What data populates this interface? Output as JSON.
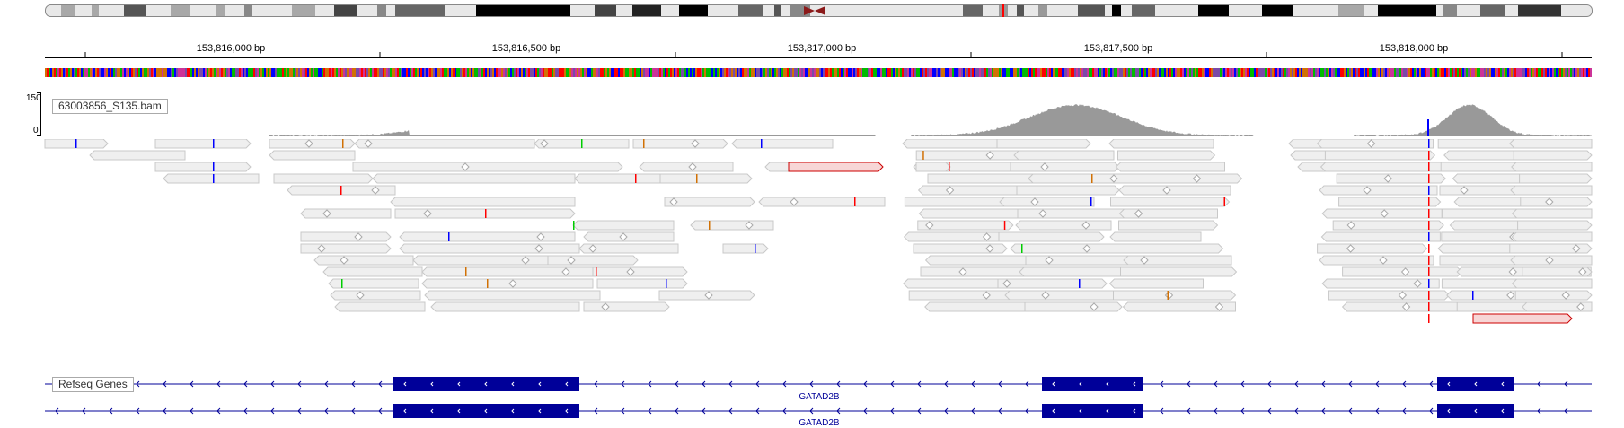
{
  "ruler": {
    "ticks": [
      "153,816,000 bp",
      "153,816,500 bp",
      "153,817,000 bp",
      "153,817,500 bp",
      "153,818,000 bp"
    ]
  },
  "coverage_track": {
    "name": "63003856_S135.bam",
    "range_max": "150",
    "range_min": "0",
    "color": "#999999"
  },
  "alignment_track": {
    "read_fill": "#efefef",
    "read_border": "#c8c8c8",
    "mismatch_colors": {
      "A": "#00cc00",
      "C": "#0000ff",
      "G": "#d17105",
      "T": "#ff0000"
    },
    "highlight_read_fill": "#f7d6d6",
    "highlight_read_border": "#cc0000"
  },
  "gene_track": {
    "name": "Refseq Genes",
    "color": "#000099",
    "transcripts": [
      {
        "name": "GATAD2B"
      },
      {
        "name": "GATAD2B"
      }
    ]
  }
}
